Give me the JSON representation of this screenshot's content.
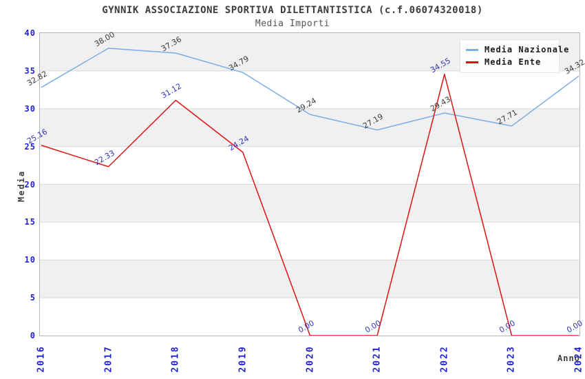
{
  "chart_data": {
    "type": "line",
    "title": "GYNNIK ASSOCIAZIONE SPORTIVA DILETTANTISTICA (c.f.06074320018)",
    "subtitle": "Media Importi",
    "xlabel": "Anno",
    "ylabel": "Media",
    "x": [
      "2016",
      "2017",
      "2018",
      "2019",
      "2020",
      "2021",
      "2022",
      "2023",
      "2024"
    ],
    "ylim": [
      0,
      40
    ],
    "ytick_step": 5,
    "grid": "horizontal",
    "band_starts": [
      5,
      15,
      25,
      35
    ],
    "band_color": "#f0f0f0",
    "gridline_color": "#d9d9d9",
    "axis_tick_color": "#2222cc",
    "legend_position": "top-right",
    "series": [
      {
        "name": "Media Nazionale",
        "color": "#7aaee3",
        "label_color": "#3a3a3a",
        "values": [
          32.82,
          38.0,
          37.36,
          34.79,
          29.24,
          27.19,
          29.43,
          27.71,
          34.32
        ]
      },
      {
        "name": "Media Ente",
        "color": "#e01212",
        "label_color": "#3333bb",
        "values": [
          25.16,
          22.33,
          31.12,
          24.24,
          0.0,
          0.0,
          34.55,
          0.0,
          0.0
        ]
      }
    ]
  }
}
